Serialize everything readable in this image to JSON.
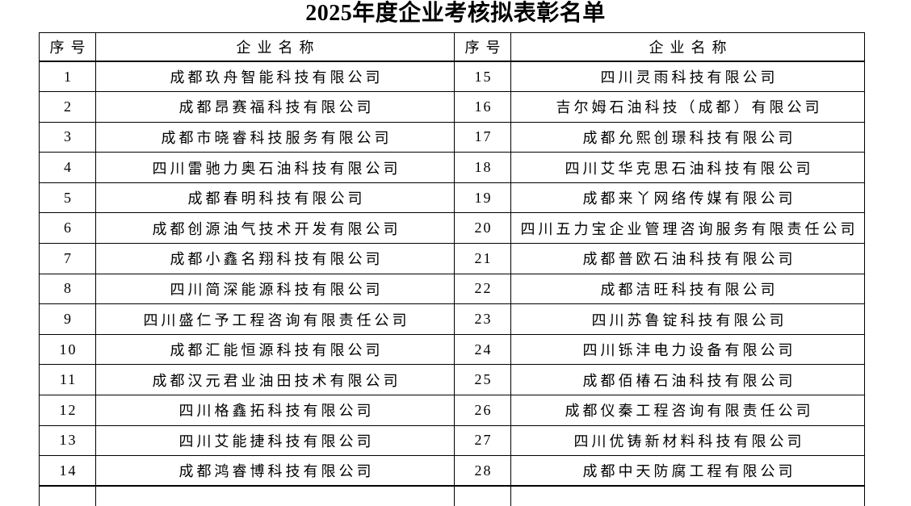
{
  "page": {
    "title": "2025年度企业考核拟表彰名单"
  },
  "table": {
    "columns": [
      "序号",
      "企业名称",
      "序号",
      "企业名称"
    ],
    "rows": [
      {
        "left_no": "1",
        "left_name": "成都玖舟智能科技有限公司",
        "right_no": "15",
        "right_name": "四川灵雨科技有限公司"
      },
      {
        "left_no": "2",
        "left_name": "成都昂赛福科技有限公司",
        "right_no": "16",
        "right_name": "吉尔姆石油科技（成都）有限公司"
      },
      {
        "left_no": "3",
        "left_name": "成都市晓睿科技服务有限公司",
        "right_no": "17",
        "right_name": "成都允熙创璟科技有限公司"
      },
      {
        "left_no": "4",
        "left_name": "四川雷驰力奥石油科技有限公司",
        "right_no": "18",
        "right_name": "四川艾华克思石油科技有限公司"
      },
      {
        "left_no": "5",
        "left_name": "成都春明科技有限公司",
        "right_no": "19",
        "right_name": "成都来丫网络传媒有限公司"
      },
      {
        "left_no": "6",
        "left_name": "成都创源油气技术开发有限公司",
        "right_no": "20",
        "right_name": "四川五力宝企业管理咨询服务有限责任公司"
      },
      {
        "left_no": "7",
        "left_name": "成都小鑫名翔科技有限公司",
        "right_no": "21",
        "right_name": "成都普欧石油科技有限公司"
      },
      {
        "left_no": "8",
        "left_name": "四川简深能源科技有限公司",
        "right_no": "22",
        "right_name": "成都洁旺科技有限公司"
      },
      {
        "left_no": "9",
        "left_name": "四川盛仁予工程咨询有限责任公司",
        "right_no": "23",
        "right_name": "四川苏鲁锭科技有限公司"
      },
      {
        "left_no": "10",
        "left_name": "成都汇能恒源科技有限公司",
        "right_no": "24",
        "right_name": "四川铄沣电力设备有限公司"
      },
      {
        "left_no": "11",
        "left_name": "成都汉元君业油田技术有限公司",
        "right_no": "25",
        "right_name": "成都佰椿石油科技有限公司"
      },
      {
        "left_no": "12",
        "left_name": "四川格鑫拓科技有限公司",
        "right_no": "26",
        "right_name": "成都仪秦工程咨询有限责任公司"
      },
      {
        "left_no": "13",
        "left_name": "四川艾能捷科技有限公司",
        "right_no": "27",
        "right_name": "四川优铸新材料科技有限公司"
      },
      {
        "left_no": "14",
        "left_name": "成都鸿睿博科技有限公司",
        "right_no": "28",
        "right_name": "成都中天防腐工程有限公司"
      }
    ]
  }
}
